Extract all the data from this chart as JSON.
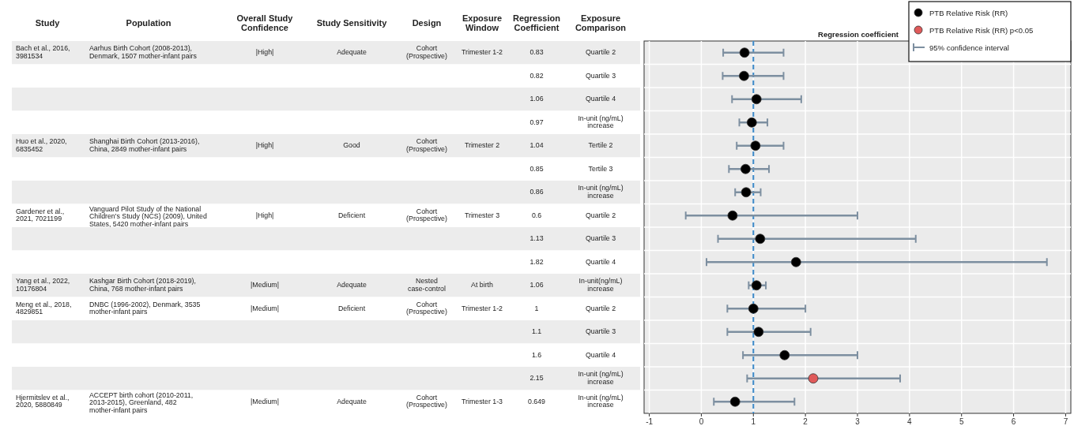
{
  "chart_data": [
    {
      "type": "other",
      "categories": [
        "Study",
        "Population",
        "Overall Study\nConfidence",
        "Study Sensitivity",
        "Design",
        "Exposure\nWindow",
        "Regression\nCoefficient",
        "Exposure\nComparison"
      ],
      "cell_labels": [
        [
          "Bach et al., 2016,\n3981534",
          "Aarhus Birth Cohort (2008-2013),\nDenmark, 1507 mother-infant pairs",
          "|High|",
          "Adequate",
          "Cohort\n(Prospective)",
          "Trimester 1-2",
          "0.83",
          "Quartile 2"
        ],
        [
          null,
          null,
          null,
          null,
          null,
          null,
          "0.82",
          "Quartile 3"
        ],
        [
          null,
          null,
          null,
          null,
          null,
          null,
          "1.06",
          "Quartile 4"
        ],
        [
          null,
          null,
          null,
          null,
          null,
          null,
          "0.97",
          "In-unit (ng/mL)\nincrease"
        ],
        [
          "Huo et al., 2020,\n6835452",
          "Shanghai Birth Cohort (2013-2016),\nChina, 2849 mother-infant pairs",
          "|High|",
          "Good",
          "Cohort\n(Prospective)",
          "Trimester 2",
          "1.04",
          "Tertile 2"
        ],
        [
          null,
          null,
          null,
          null,
          null,
          null,
          "0.85",
          "Tertile 3"
        ],
        [
          null,
          null,
          null,
          null,
          null,
          null,
          "0.86",
          "In-unit (ng/mL)\nincrease"
        ],
        [
          "Gardener et al.,\n2021, 7021199",
          "Vanguard Pilot Study of the National\nChildren's Study (NCS) (2009), United\nStates, 5420 mother-infant pairs",
          "|High|",
          "Deficient",
          "Cohort\n(Prospective)",
          "Trimester 3",
          "0.6",
          "Quartile 2"
        ],
        [
          null,
          null,
          null,
          null,
          null,
          null,
          "1.13",
          "Quartile 3"
        ],
        [
          null,
          null,
          null,
          null,
          null,
          null,
          "1.82",
          "Quartile 4"
        ],
        [
          "Yang et al., 2022,\n10176804",
          "Kashgar Birth Cohort (2018-2019),\nChina, 768 mother-infant pairs",
          "|Medium|",
          "Adequate",
          "Nested\ncase-control",
          "At birth",
          "1.06",
          "In-unit(ng/mL)\nincrease"
        ],
        [
          "Meng et al., 2018,\n4829851",
          "DNBC (1996-2002), Denmark, 3535\nmother-infant pairs",
          "|Medium|",
          "Deficient",
          "Cohort\n(Prospective)",
          "Trimester 1-2",
          "1",
          "Quartile 2"
        ],
        [
          null,
          null,
          null,
          null,
          null,
          null,
          "1.1",
          "Quartile 3"
        ],
        [
          null,
          null,
          null,
          null,
          null,
          null,
          "1.6",
          "Quartile 4"
        ],
        [
          null,
          null,
          null,
          null,
          null,
          null,
          "2.15",
          "In-unit (ng/mL)\nincrease"
        ],
        [
          "Hjermitslev et al.,\n2020, 5880849",
          "ACCEPT birth cohort (2010-2011,\n2013-2015), Greenland, 482\nmother-infant pairs",
          "|Medium|",
          "Adequate",
          "Cohort\n(Prospective)",
          "Trimester 1-3",
          "0.649",
          "In-unit (ng/mL)\nincrease"
        ]
      ]
    },
    {
      "type": "scatter",
      "title": "Regression coefficient",
      "orientation": "horizontal",
      "categories": [
        null,
        null,
        null,
        null,
        null,
        null,
        null,
        null,
        null,
        null,
        null,
        null,
        null,
        null,
        null,
        null
      ],
      "series": [
        {
          "name": "PTB Relative Risk (RR)",
          "color": "#000000",
          "values": [
            0.83,
            0.82,
            1.06,
            0.97,
            1.04,
            0.85,
            0.86,
            0.6,
            1.13,
            1.82,
            1.06,
            1,
            1.1,
            1.6,
            null,
            0.649
          ],
          "errors": [
            [
              0.42,
              1.58
            ],
            [
              0.41,
              1.58
            ],
            [
              0.59,
              1.92
            ],
            [
              0.73,
              1.27
            ],
            [
              0.68,
              1.58
            ],
            [
              0.53,
              1.3
            ],
            [
              0.65,
              1.14
            ],
            [
              -0.3,
              3.0
            ],
            [
              0.32,
              4.12
            ],
            [
              0.1,
              6.64
            ],
            [
              0.91,
              1.24
            ],
            [
              0.5,
              2.0
            ],
            [
              0.5,
              2.1
            ],
            [
              0.8,
              3.0
            ],
            null,
            [
              0.24,
              1.79
            ]
          ]
        },
        {
          "name": "PTB Relative Risk (RR) p<0.05",
          "color": "#e05a5a",
          "values": [
            null,
            null,
            null,
            null,
            null,
            null,
            null,
            null,
            null,
            null,
            null,
            null,
            null,
            null,
            2.15,
            null
          ],
          "errors": [
            null,
            null,
            null,
            null,
            null,
            null,
            null,
            null,
            null,
            null,
            null,
            null,
            null,
            null,
            [
              0.88,
              3.82
            ],
            null
          ]
        }
      ],
      "annotations": [
        "95% confidence interval"
      ],
      "xlim": [
        -1.1,
        7.1
      ],
      "xticks": [
        -1,
        0,
        1,
        2,
        3,
        4,
        5,
        6,
        7
      ],
      "ref_lines": [
        {
          "axis": "x",
          "value": 1,
          "color": "#3a88c8",
          "line_style": "dashed"
        }
      ],
      "grid": true,
      "legend": "top right",
      "marker": "circle"
    }
  ]
}
